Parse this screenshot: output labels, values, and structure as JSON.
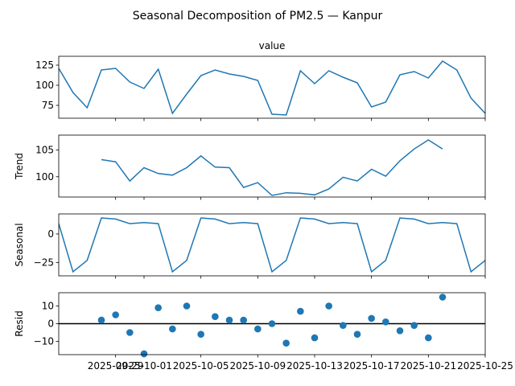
{
  "figure": {
    "title": "Seasonal Decomposition of PM2.5 — Kanpur",
    "line_color": "#1f77b4",
    "zero_line_color": "#000000",
    "x_tick_labels": [
      "2025-09-29",
      "2025-10-01",
      "2025-10-05",
      "2025-10-09",
      "2025-10-13",
      "2025-10-17",
      "2025-10-21",
      "2025-10-25"
    ]
  },
  "chart_data": [
    {
      "type": "line",
      "title": "value",
      "ylabel": "",
      "x_start": "2025-09-25",
      "x": [
        "2025-09-25",
        "2025-09-26",
        "2025-09-27",
        "2025-09-28",
        "2025-09-29",
        "2025-09-30",
        "2025-10-01",
        "2025-10-02",
        "2025-10-03",
        "2025-10-04",
        "2025-10-05",
        "2025-10-06",
        "2025-10-07",
        "2025-10-08",
        "2025-10-09",
        "2025-10-10",
        "2025-10-11",
        "2025-10-12",
        "2025-10-13",
        "2025-10-14",
        "2025-10-15",
        "2025-10-16",
        "2025-10-17",
        "2025-10-18",
        "2025-10-19",
        "2025-10-20",
        "2025-10-21",
        "2025-10-22",
        "2025-10-23",
        "2025-10-24",
        "2025-10-25"
      ],
      "values": [
        121,
        91,
        72,
        119,
        121,
        104,
        96,
        120,
        65,
        89,
        112,
        119,
        114,
        111,
        106,
        64,
        63,
        118,
        102,
        118,
        110,
        103,
        73,
        79,
        113,
        117,
        109,
        130,
        119,
        84,
        65
      ],
      "ylim": [
        59,
        136
      ],
      "yticks": [
        75,
        100,
        125
      ],
      "ytick_labels": [
        "75",
        "100",
        "125"
      ]
    },
    {
      "type": "line",
      "title": "",
      "ylabel": "Trend",
      "x": [
        "2025-09-28",
        "2025-09-29",
        "2025-09-30",
        "2025-10-01",
        "2025-10-02",
        "2025-10-03",
        "2025-10-04",
        "2025-10-05",
        "2025-10-06",
        "2025-10-07",
        "2025-10-08",
        "2025-10-09",
        "2025-10-10",
        "2025-10-11",
        "2025-10-12",
        "2025-10-13",
        "2025-10-14",
        "2025-10-15",
        "2025-10-16",
        "2025-10-17",
        "2025-10-18",
        "2025-10-19",
        "2025-10-20",
        "2025-10-21",
        "2025-10-22"
      ],
      "values": [
        103.2,
        102.8,
        99.2,
        101.7,
        100.6,
        100.3,
        101.7,
        103.9,
        101.8,
        101.7,
        98.0,
        98.9,
        96.5,
        97.0,
        96.9,
        96.6,
        97.7,
        99.9,
        99.2,
        101.4,
        100.1,
        103.0,
        105.2,
        106.9,
        105.2
      ],
      "ylim": [
        96.2,
        107.8
      ],
      "yticks": [
        100,
        105
      ],
      "ytick_labels": [
        "100",
        "105"
      ]
    },
    {
      "type": "line",
      "title": "",
      "ylabel": "Seasonal",
      "x": [
        "2025-09-25",
        "2025-09-26",
        "2025-09-27",
        "2025-09-28",
        "2025-09-29",
        "2025-09-30",
        "2025-10-01",
        "2025-10-02",
        "2025-10-03",
        "2025-10-04",
        "2025-10-05",
        "2025-10-06",
        "2025-10-07",
        "2025-10-08",
        "2025-10-09",
        "2025-10-10",
        "2025-10-11",
        "2025-10-12",
        "2025-10-13",
        "2025-10-14",
        "2025-10-15",
        "2025-10-16",
        "2025-10-17",
        "2025-10-18",
        "2025-10-19",
        "2025-10-20",
        "2025-10-21",
        "2025-10-22",
        "2025-10-23",
        "2025-10-24",
        "2025-10-25"
      ],
      "values": [
        9,
        -33,
        -23,
        14,
        13,
        9,
        10,
        9,
        -33,
        -23,
        14,
        13,
        9,
        10,
        9,
        -33,
        -23,
        14,
        13,
        9,
        10,
        9,
        -33,
        -23,
        14,
        13,
        9,
        10,
        9,
        -33,
        -23
      ],
      "ylim": [
        -36.5,
        17.5
      ],
      "yticks": [
        -25,
        0
      ],
      "ytick_labels": [
        "−25",
        "0"
      ]
    },
    {
      "type": "scatter",
      "title": "",
      "ylabel": "Resid",
      "x": [
        "2025-09-28",
        "2025-09-29",
        "2025-09-30",
        "2025-10-01",
        "2025-10-02",
        "2025-10-03",
        "2025-10-04",
        "2025-10-05",
        "2025-10-06",
        "2025-10-07",
        "2025-10-08",
        "2025-10-09",
        "2025-10-10",
        "2025-10-11",
        "2025-10-12",
        "2025-10-13",
        "2025-10-14",
        "2025-10-15",
        "2025-10-16",
        "2025-10-17",
        "2025-10-18",
        "2025-10-19",
        "2025-10-20",
        "2025-10-21",
        "2025-10-22"
      ],
      "values": [
        2,
        5,
        -5,
        -17,
        9,
        -3,
        10,
        -6,
        4,
        2,
        2,
        -3,
        0,
        -11,
        7,
        -8,
        10,
        -1,
        -6,
        3,
        1,
        -4,
        -1,
        -8,
        15
      ],
      "ylim": [
        -17.5,
        17.5
      ],
      "yticks": [
        -10,
        0,
        10
      ],
      "ytick_labels": [
        "−10",
        "0",
        "10"
      ],
      "zero_line": 0
    }
  ]
}
